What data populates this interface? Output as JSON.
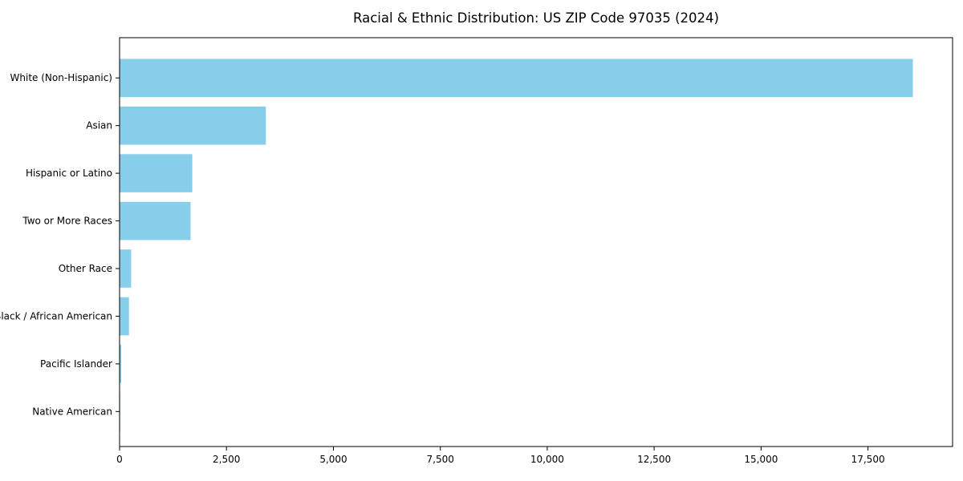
{
  "chart_data": {
    "type": "bar",
    "orientation": "horizontal",
    "title": "Racial & Ethnic Distribution: US ZIP Code 97035 (2024)",
    "categories": [
      "White (Non-Hispanic)",
      "Asian",
      "Hispanic or Latino",
      "Two or More Races",
      "Other Race",
      "Black / African American",
      "Pacific Islander",
      "Native American"
    ],
    "values": [
      18550,
      3420,
      1700,
      1660,
      270,
      220,
      40,
      15
    ],
    "xlabel": "",
    "ylabel": "",
    "xlim": [
      0,
      19478
    ],
    "x_ticks": [
      0,
      2500,
      5000,
      7500,
      10000,
      12500,
      15000,
      17500
    ],
    "x_tick_labels": [
      "0",
      "2,500",
      "5,000",
      "7,500",
      "10,000",
      "12,500",
      "15,000",
      "17,500"
    ],
    "bar_color": "#87ceeb",
    "axis_color": "#000000",
    "background_color": "#ffffff",
    "grid": false,
    "legend": null
  }
}
